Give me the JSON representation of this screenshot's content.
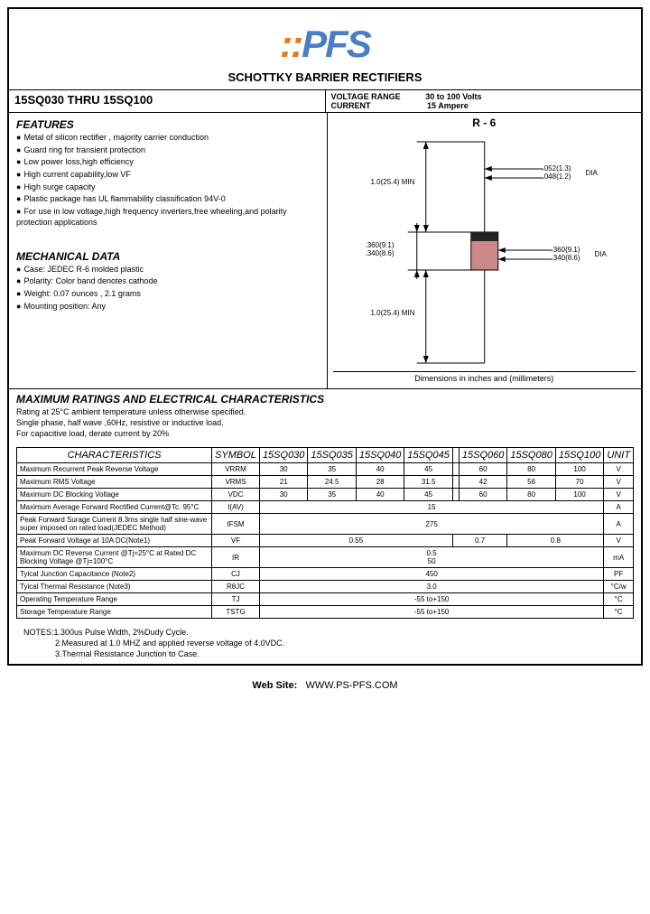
{
  "logo_p": "P",
  "logo_f": "F",
  "logo_s": "S",
  "subtitle": "SCHOTTKY BARRIER RECTIFIERS",
  "part_range": "15SQ030 THRU 15SQ100",
  "voltage_label": "VOLTAGE RANGE",
  "voltage_val": "30 to 100 Volts",
  "current_label": "CURRENT",
  "current_val": "15 Ampere",
  "package": "R - 6",
  "features_title": "FEATURES",
  "features": [
    "Metal of silicon rectifier , majority carrier conduction",
    "Guard ring for transient protection",
    "Low power loss,high efficiency",
    "High current capability,low VF",
    "High surge capacity",
    "Plastic package has UL flammability classification 94V-0",
    "For use in low voltage,high frequency inverters,free wheeling,and polarity protection applications"
  ],
  "mech_title": "MECHANICAL DATA",
  "mech": [
    "Case: JEDEC R-6 molded plastic",
    "Polarity:  Color band denotes cathode",
    "Weight:  0.07 ounces , 2.1 grams",
    "Mounting position:  Any"
  ],
  "dim_note": "Dimensions in inches and (millimeters)",
  "dim": {
    "lead_min": "1.0(25.4) MIN",
    "lead_dia_1": ".052(1.3)",
    "lead_dia_2": ".048(1.2)",
    "body_h_1": ".360(9.1)",
    "body_h_2": ".340(8.6)",
    "body_dia_1": ".360(9.1)",
    "body_dia_2": ".340(8.6)",
    "dia": "DIA"
  },
  "ratings_title": "MAXIMUM RATINGS AND ELECTRICAL CHARACTERISTICS",
  "ratings_notes": [
    "Rating at 25°C ambient temperature unless otherwise specified.",
    "Single phase, half wave ,60Hz, resistive or inductive load.",
    "For capacitive load, derate current by 20%"
  ],
  "table": {
    "headers": [
      "CHARACTERISTICS",
      "SYMBOL",
      "15SQ030",
      "15SQ035",
      "15SQ040",
      "15SQ045",
      "",
      "15SQ060",
      "15SQ080",
      "15SQ100",
      "UNIT"
    ],
    "rows": [
      {
        "c": "Maximum Recurrent Peak Reverse Voltage",
        "s": "VRRM",
        "v": [
          "30",
          "35",
          "40",
          "45",
          "",
          "60",
          "80",
          "100"
        ],
        "u": "V"
      },
      {
        "c": "Maximum RMS Voltage",
        "s": "VRMS",
        "v": [
          "21",
          "24.5",
          "28",
          "31.5",
          "",
          "42",
          "56",
          "70"
        ],
        "u": "V"
      },
      {
        "c": "Maximum DC Blocking Voltage",
        "s": "VDC",
        "v": [
          "30",
          "35",
          "40",
          "45",
          "",
          "60",
          "80",
          "100"
        ],
        "u": "V"
      },
      {
        "c": "Maximum Average Forward Rectified Current@Tc: 95°C",
        "s": "I(AV)",
        "span": 8,
        "v": "15",
        "u": "A"
      },
      {
        "c": "Peak Forward Surage Current 8.3ms single half sine-wave super imposed on rated load(JEDEC Method)",
        "s": "IFSM",
        "span": 8,
        "v": "275",
        "u": "A"
      },
      {
        "c": "Peak Forward Voltage at 10A DC(Note1)",
        "s": "VF",
        "merged": [
          {
            "span": 4,
            "v": "0.55"
          },
          {
            "span": 2,
            "v": "0.7"
          },
          {
            "span": 2,
            "v": "0.8"
          }
        ],
        "u": "V"
      },
      {
        "c": "Maximum DC Reverse Current @Tj=25°C at Rated DC Blocking Voltage @Tj=100°C",
        "s": "IR",
        "stacked": [
          "0.5",
          "50"
        ],
        "u": "mA"
      },
      {
        "c": "Tyical Junction Capacitance (Note2)",
        "s": "CJ",
        "span": 8,
        "v": "450",
        "u": "PF"
      },
      {
        "c": "Tyical Thermal Resistance (Note3)",
        "s": "RθJC",
        "span": 8,
        "v": "3.0",
        "u": "°C/w"
      },
      {
        "c": "Operating Temperature Range",
        "s": "TJ",
        "span": 8,
        "v": "-55 to+150",
        "u": "°C"
      },
      {
        "c": "Storage Temperature Range",
        "s": "TSTG",
        "span": 8,
        "v": "-55 to+150",
        "u": "°C"
      }
    ]
  },
  "footnotes": [
    "NOTES:1.300us Pulse Width, 2%Dudy Cycle.",
    "2.Measured at 1.0 MHZ and applied reverse voltage of 4.0VDC.",
    "3.Thermal Resistance Junction to Case."
  ],
  "website_label": "Web Site:",
  "website": "WWW.PS-PFS.COM"
}
